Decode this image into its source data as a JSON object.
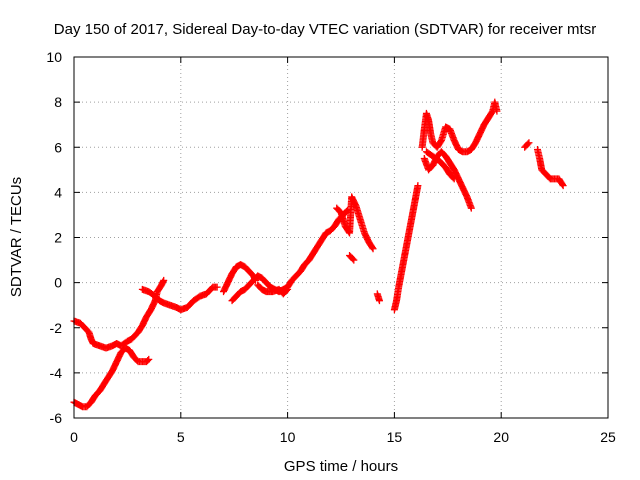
{
  "chart_data": {
    "type": "scatter",
    "title": "Day 150 of 2017, Sidereal Day-to-day VTEC variation (SDTVAR) for receiver mtsr",
    "xlabel": "GPS time / hours",
    "ylabel": "SDTVAR / TECUs",
    "xlim": [
      0,
      25
    ],
    "ylim": [
      -6,
      10
    ],
    "xticks": [
      0,
      5,
      10,
      15,
      20,
      25
    ],
    "yticks": [
      -6,
      -4,
      -2,
      0,
      2,
      4,
      6,
      8,
      10
    ],
    "grid": true,
    "marker": "+",
    "series_color": "#ff0000",
    "segments": [
      [
        [
          0.0,
          -1.7
        ],
        [
          0.3,
          -1.8
        ],
        [
          0.5,
          -2.0
        ],
        [
          0.7,
          -2.2
        ],
        [
          0.8,
          -2.5
        ],
        [
          0.9,
          -2.7
        ],
        [
          1.2,
          -2.8
        ],
        [
          1.5,
          -2.9
        ],
        [
          1.8,
          -2.8
        ],
        [
          2.0,
          -2.7
        ],
        [
          2.2,
          -2.8
        ],
        [
          2.5,
          -2.6
        ],
        [
          2.7,
          -2.5
        ],
        [
          2.9,
          -2.3
        ],
        [
          3.0,
          -2.2
        ],
        [
          3.2,
          -1.9
        ],
        [
          3.4,
          -1.5
        ],
        [
          3.6,
          -1.2
        ],
        [
          3.8,
          -0.8
        ],
        [
          3.9,
          -0.4
        ],
        [
          4.1,
          -0.1
        ],
        [
          4.2,
          0.1
        ]
      ],
      [
        [
          0.0,
          -5.3
        ],
        [
          0.2,
          -5.4
        ],
        [
          0.4,
          -5.5
        ],
        [
          0.6,
          -5.5
        ],
        [
          0.8,
          -5.3
        ],
        [
          1.0,
          -5.0
        ],
        [
          1.2,
          -4.8
        ],
        [
          1.4,
          -4.5
        ],
        [
          1.6,
          -4.2
        ],
        [
          1.8,
          -3.9
        ],
        [
          2.0,
          -3.5
        ],
        [
          2.2,
          -3.1
        ],
        [
          2.4,
          -2.9
        ],
        [
          2.6,
          -3.0
        ],
        [
          2.8,
          -3.3
        ],
        [
          3.0,
          -3.5
        ],
        [
          3.2,
          -3.5
        ],
        [
          3.4,
          -3.5
        ],
        [
          3.5,
          -3.4
        ]
      ],
      [
        [
          3.2,
          -0.3
        ],
        [
          3.5,
          -0.4
        ],
        [
          3.8,
          -0.6
        ],
        [
          4.0,
          -0.8
        ],
        [
          4.2,
          -0.9
        ],
        [
          4.5,
          -1.0
        ],
        [
          4.8,
          -1.1
        ],
        [
          5.0,
          -1.2
        ],
        [
          5.3,
          -1.1
        ],
        [
          5.6,
          -0.8
        ],
        [
          5.9,
          -0.6
        ],
        [
          6.2,
          -0.5
        ],
        [
          6.5,
          -0.2
        ],
        [
          6.7,
          -0.2
        ]
      ],
      [
        [
          7.0,
          -0.4
        ],
        [
          7.2,
          0.0
        ],
        [
          7.4,
          0.4
        ],
        [
          7.6,
          0.7
        ],
        [
          7.8,
          0.8
        ],
        [
          8.0,
          0.7
        ],
        [
          8.2,
          0.5
        ],
        [
          8.4,
          0.3
        ],
        [
          8.5,
          0.1
        ]
      ],
      [
        [
          7.4,
          -0.8
        ],
        [
          7.6,
          -0.6
        ],
        [
          7.8,
          -0.4
        ],
        [
          8.0,
          -0.3
        ],
        [
          8.2,
          -0.1
        ],
        [
          8.4,
          0.1
        ],
        [
          8.6,
          0.3
        ],
        [
          8.8,
          0.2
        ],
        [
          9.0,
          0.0
        ],
        [
          9.2,
          -0.2
        ],
        [
          9.4,
          -0.3
        ],
        [
          9.6,
          -0.4
        ],
        [
          9.8,
          -0.3
        ],
        [
          10.0,
          -0.2
        ],
        [
          10.2,
          0.1
        ],
        [
          10.4,
          0.3
        ],
        [
          10.6,
          0.5
        ],
        [
          10.8,
          0.8
        ],
        [
          11.0,
          1.0
        ],
        [
          11.2,
          1.3
        ],
        [
          11.4,
          1.6
        ],
        [
          11.6,
          1.9
        ],
        [
          11.8,
          2.2
        ],
        [
          12.0,
          2.3
        ],
        [
          12.2,
          2.5
        ],
        [
          12.4,
          2.8
        ],
        [
          12.6,
          3.0
        ],
        [
          12.8,
          3.2
        ]
      ],
      [
        [
          8.6,
          -0.1
        ],
        [
          8.8,
          -0.3
        ],
        [
          9.0,
          -0.4
        ],
        [
          9.3,
          -0.4
        ],
        [
          9.6,
          -0.3
        ],
        [
          9.8,
          -0.5
        ],
        [
          10.0,
          -0.3
        ]
      ],
      [
        [
          12.3,
          3.3
        ],
        [
          12.5,
          3.1
        ],
        [
          12.7,
          2.5
        ],
        [
          12.9,
          2.2
        ],
        [
          13.0,
          3.8
        ],
        [
          13.2,
          3.4
        ],
        [
          13.4,
          2.8
        ],
        [
          13.6,
          2.2
        ],
        [
          13.8,
          1.8
        ],
        [
          14.0,
          1.5
        ]
      ],
      [
        [
          12.9,
          1.2
        ],
        [
          13.1,
          1.0
        ]
      ],
      [
        [
          14.2,
          -0.5
        ],
        [
          14.3,
          -0.8
        ]
      ],
      [
        [
          15.0,
          -1.2
        ],
        [
          15.1,
          -0.8
        ],
        [
          15.2,
          -0.2
        ],
        [
          15.3,
          0.3
        ],
        [
          15.4,
          0.8
        ],
        [
          15.5,
          1.3
        ],
        [
          15.6,
          1.8
        ],
        [
          15.7,
          2.3
        ],
        [
          15.8,
          2.8
        ],
        [
          15.9,
          3.3
        ],
        [
          16.0,
          3.8
        ],
        [
          16.1,
          4.3
        ]
      ],
      [
        [
          16.3,
          6.0
        ],
        [
          16.4,
          6.8
        ],
        [
          16.5,
          7.5
        ],
        [
          16.6,
          7.2
        ],
        [
          16.7,
          6.6
        ],
        [
          16.8,
          6.2
        ],
        [
          17.0,
          6.0
        ],
        [
          17.2,
          6.3
        ],
        [
          17.4,
          6.9
        ],
        [
          17.6,
          6.8
        ],
        [
          17.8,
          6.3
        ],
        [
          18.0,
          5.9
        ],
        [
          18.2,
          5.8
        ],
        [
          18.4,
          5.8
        ],
        [
          18.6,
          5.9
        ],
        [
          18.8,
          6.2
        ],
        [
          19.0,
          6.6
        ],
        [
          19.2,
          7.0
        ],
        [
          19.4,
          7.3
        ],
        [
          19.6,
          7.6
        ],
        [
          19.7,
          8.0
        ],
        [
          19.8,
          7.6
        ]
      ],
      [
        [
          16.4,
          5.5
        ],
        [
          16.6,
          5.0
        ],
        [
          16.8,
          5.2
        ],
        [
          17.0,
          5.6
        ],
        [
          17.2,
          5.8
        ],
        [
          17.4,
          5.6
        ],
        [
          17.6,
          5.3
        ],
        [
          17.8,
          5.0
        ],
        [
          18.0,
          4.6
        ],
        [
          18.2,
          4.2
        ],
        [
          18.4,
          3.8
        ],
        [
          18.6,
          3.3
        ]
      ],
      [
        [
          16.5,
          5.8
        ],
        [
          16.8,
          5.6
        ],
        [
          17.1,
          5.4
        ],
        [
          17.4,
          5.1
        ],
        [
          17.6,
          4.8
        ],
        [
          17.8,
          4.6
        ]
      ],
      [
        [
          21.1,
          6.0
        ],
        [
          21.3,
          6.2
        ]
      ],
      [
        [
          21.7,
          5.9
        ],
        [
          21.8,
          5.5
        ],
        [
          21.9,
          5.0
        ],
        [
          22.1,
          4.8
        ],
        [
          22.3,
          4.6
        ],
        [
          22.5,
          4.6
        ],
        [
          22.7,
          4.6
        ],
        [
          22.9,
          4.3
        ]
      ]
    ]
  }
}
